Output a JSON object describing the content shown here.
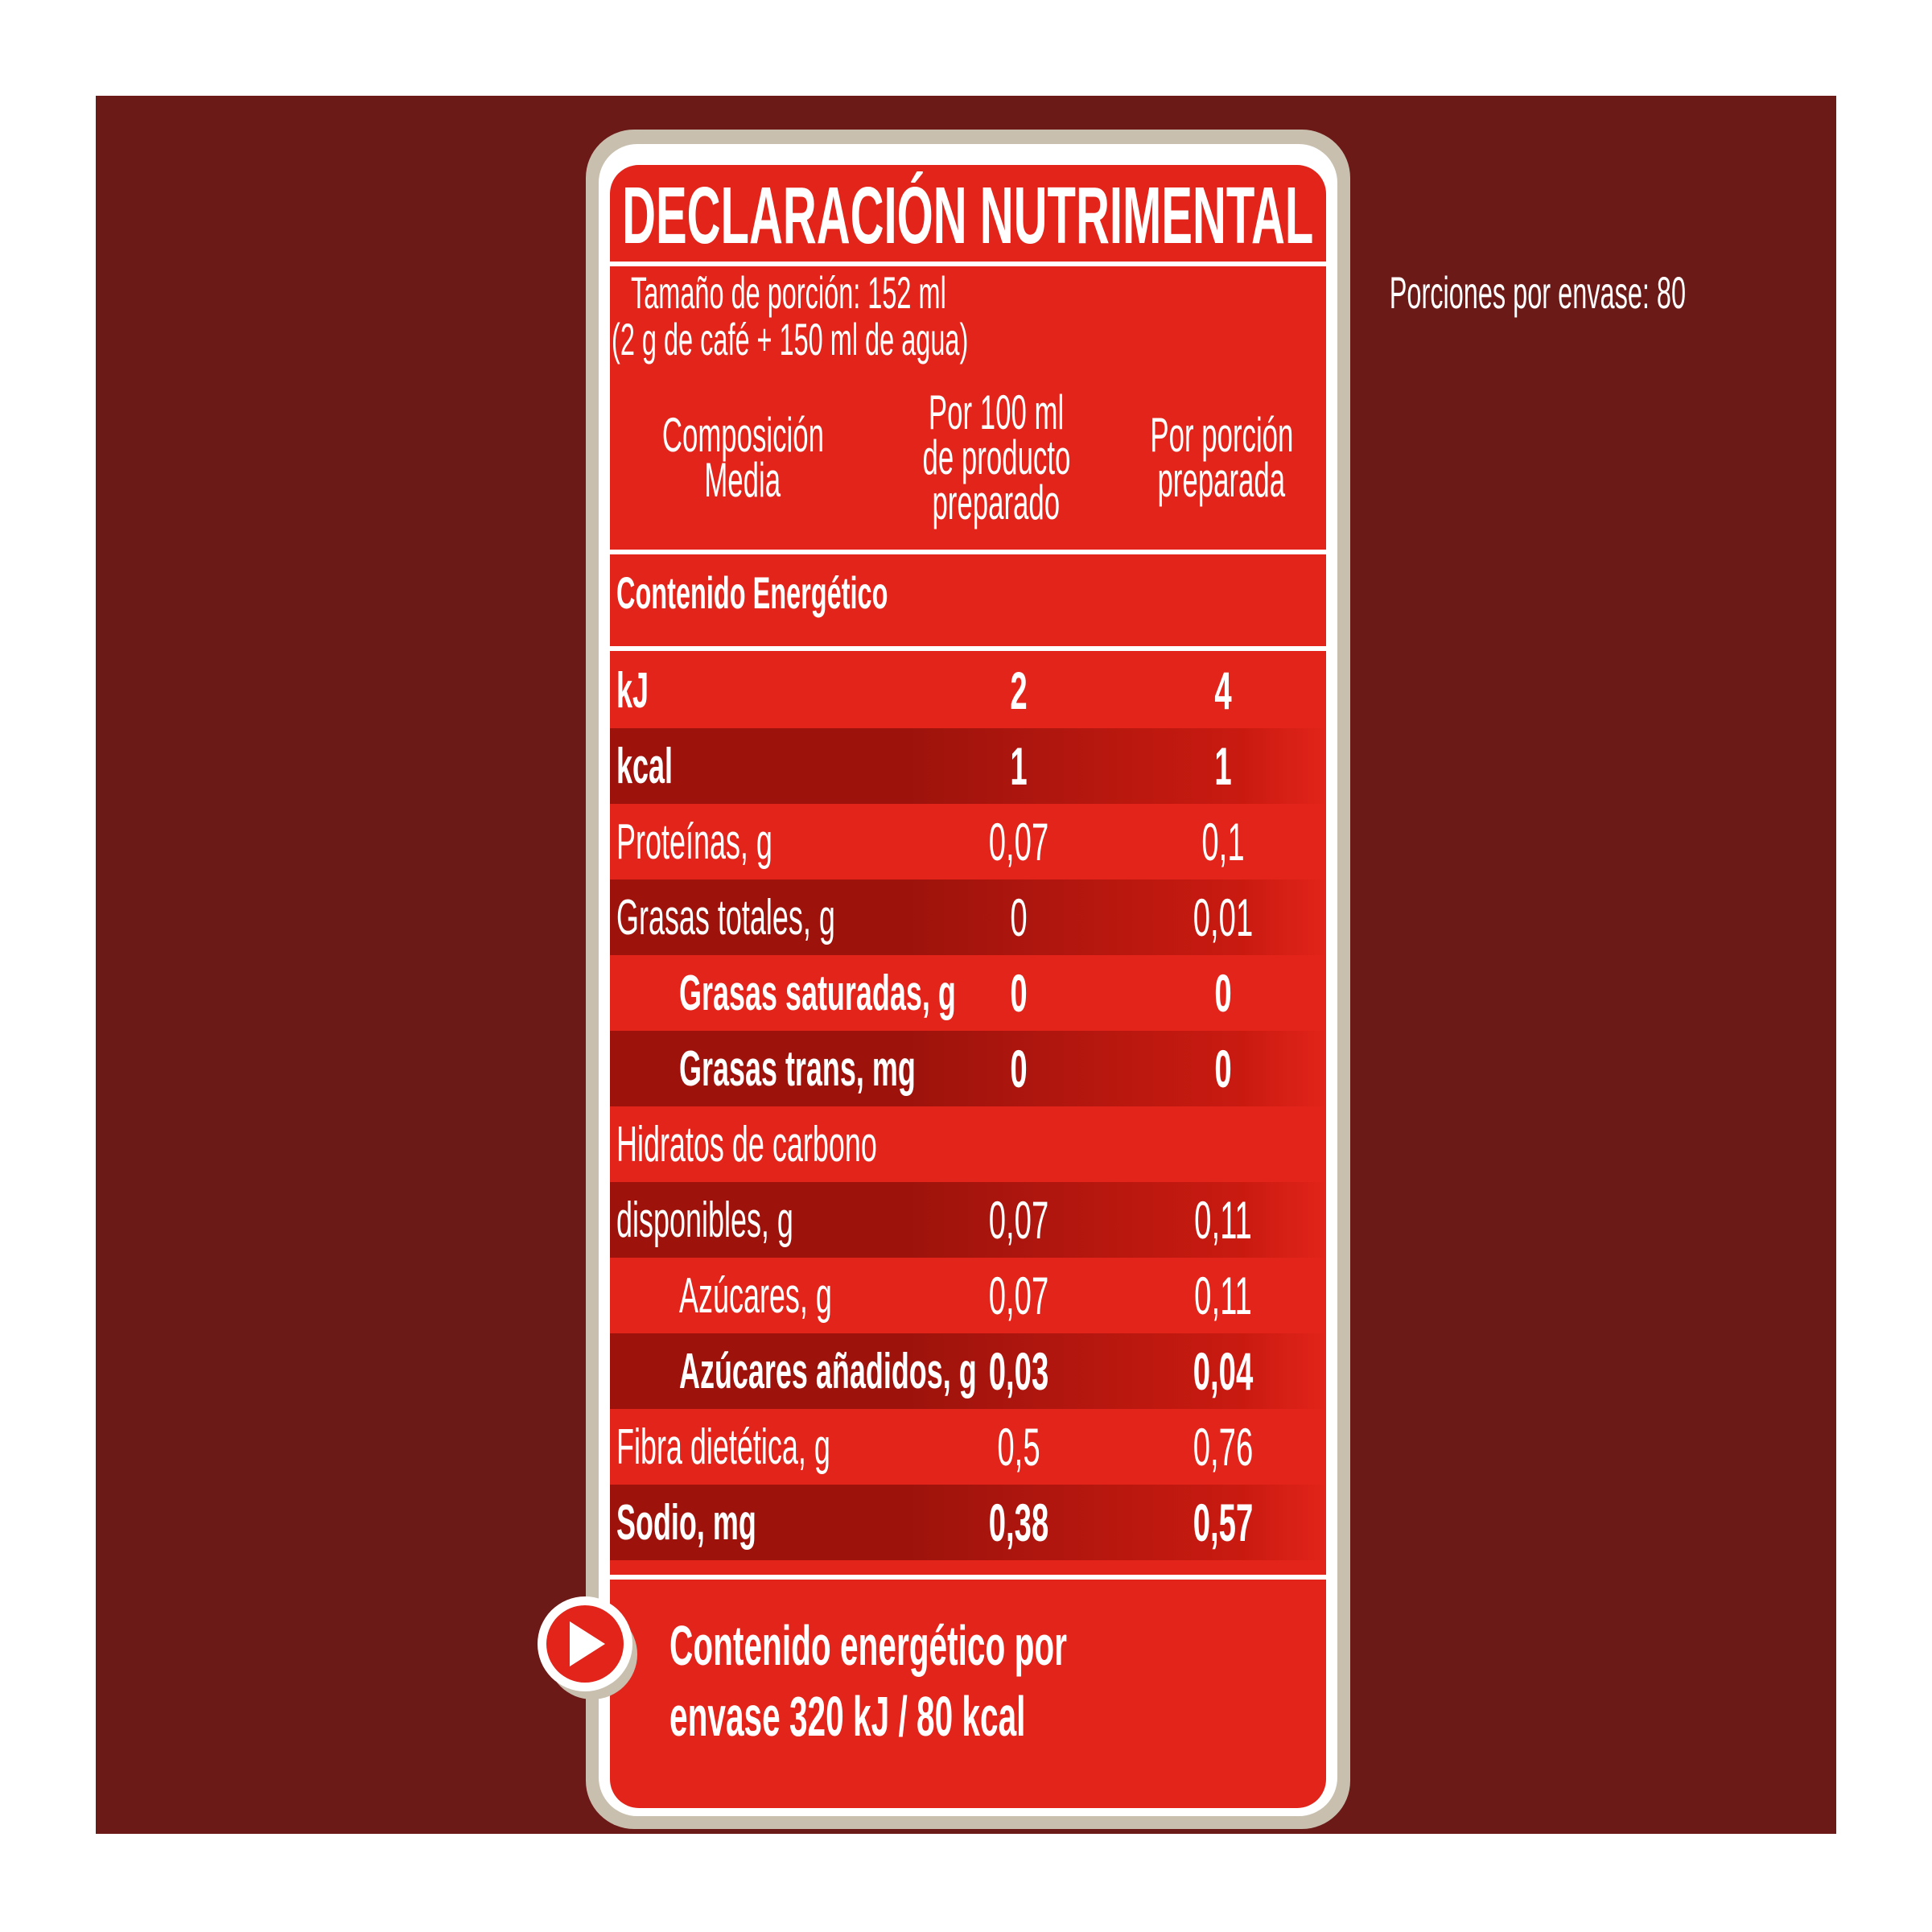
{
  "colors": {
    "page_bg": "#ffffff",
    "panel_bg": "#6b1a17",
    "card_red": "#e2241a",
    "card_tan": "#c8bfae",
    "band_dark": "#9d130c",
    "band_mid": "#c91a10",
    "text": "#ffffff"
  },
  "header": {
    "title": "DECLARACIÓN NUTRIMENTAL"
  },
  "serving": {
    "size": "Tamaño de porción: 152 ml",
    "detail": "(2 g de café + 150 ml de agua)",
    "per_container": "Porciones por envase: 80"
  },
  "columns": {
    "c0_l1": "Composición",
    "c0_l2": "Media",
    "c1_l1": "Por 100 ml",
    "c1_l2": "de producto",
    "c1_l3": "preparado",
    "c2_l1": "Por porción",
    "c2_l2": "preparada"
  },
  "section": {
    "energy_header": "Contenido Energético"
  },
  "rows": [
    {
      "label": "kJ",
      "v1": "2",
      "v2": "4",
      "bold": true,
      "band": false,
      "indent": false
    },
    {
      "label": "kcal",
      "v1": "1",
      "v2": "1",
      "bold": true,
      "band": true,
      "indent": false
    },
    {
      "label": "Proteínas, g",
      "v1": "0,07",
      "v2": "0,1",
      "bold": false,
      "band": false,
      "indent": false
    },
    {
      "label": "Grasas totales, g",
      "v1": "0",
      "v2": "0,01",
      "bold": false,
      "band": true,
      "indent": false
    },
    {
      "label": "Grasas saturadas, g",
      "v1": "0",
      "v2": "0",
      "bold": true,
      "band": false,
      "indent": true
    },
    {
      "label": "Grasas trans, mg",
      "v1": "0",
      "v2": "0",
      "bold": true,
      "band": true,
      "indent": true
    },
    {
      "label": "Hidratos de carbono",
      "v1": "",
      "v2": "",
      "bold": false,
      "band": false,
      "indent": false
    },
    {
      "label": "disponibles, g",
      "v1": "0,07",
      "v2": "0,11",
      "bold": false,
      "band": true,
      "indent": false
    },
    {
      "label": "Azúcares, g",
      "v1": "0,07",
      "v2": "0,11",
      "bold": false,
      "band": false,
      "indent": true
    },
    {
      "label": "Azúcares añadidos, g",
      "v1": "0,03",
      "v2": "0,04",
      "bold": true,
      "band": true,
      "indent": true
    },
    {
      "label": "Fibra dietética, g",
      "v1": "0,5",
      "v2": "0,76",
      "bold": false,
      "band": false,
      "indent": false
    },
    {
      "label": "Sodio, mg",
      "v1": "0,38",
      "v2": "0,57",
      "bold": true,
      "band": true,
      "indent": false
    }
  ],
  "footer": {
    "line1": "Contenido energético por",
    "line2": "envase 320 kJ / 80 kcal",
    "icon": "play-icon"
  }
}
